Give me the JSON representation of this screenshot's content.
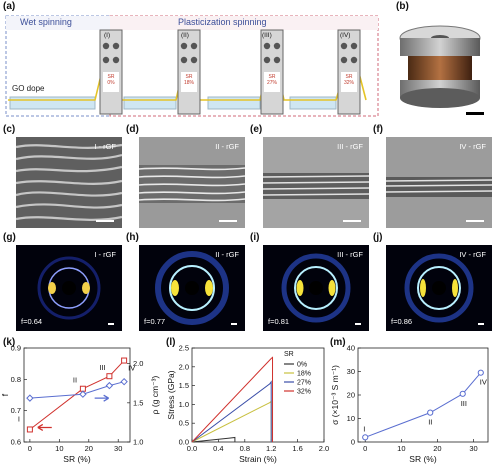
{
  "panel_labels": {
    "a": "(a)",
    "b": "(b)",
    "c": "(c)",
    "d": "(d)",
    "e": "(e)",
    "f": "(f)",
    "g": "(g)",
    "h": "(h)",
    "i": "(i)",
    "j": "(j)",
    "k": "(k)",
    "l": "(l)",
    "m": "(m)"
  },
  "schematic": {
    "wet_label": "Wet spinning",
    "plastic_label": "Plasticization spinning",
    "dope_label": "GO dope",
    "stations": [
      {
        "roman": "(I)",
        "sr": "SR\n0%"
      },
      {
        "roman": "(II)",
        "sr": "SR\n18%"
      },
      {
        "roman": "(III)",
        "sr": "SR\n27%"
      },
      {
        "roman": "(IV)",
        "sr": "SR\n32%"
      }
    ]
  },
  "sem": [
    {
      "tag": "I - rGF"
    },
    {
      "tag": "II - rGF"
    },
    {
      "tag": "III - rGF"
    },
    {
      "tag": "IV - rGF"
    }
  ],
  "saxs": [
    {
      "tag": "I - rGF",
      "f": "f=0.64"
    },
    {
      "tag": "II - rGF",
      "f": "f=0.77"
    },
    {
      "tag": "III - rGF",
      "f": "f=0.81"
    },
    {
      "tag": "IV - rGF",
      "f": "f=0.86"
    }
  ],
  "colors": {
    "red": "#d0312d",
    "blue": "#5a6ed0",
    "wet_box": "#7a8fc8",
    "plastic_box": "#d06a7a"
  },
  "chart_data": [
    {
      "type": "line",
      "xlabel": "SR (%)",
      "ylabel": "f",
      "y2label": "ρ (g cm⁻³)",
      "xlim": [
        -2,
        34
      ],
      "ylim": [
        0.6,
        0.9
      ],
      "y2lim": [
        1.0,
        2.2
      ],
      "xticks": [
        "0",
        "10",
        "20",
        "30"
      ],
      "yticks": [
        "0.6",
        "0.7",
        "0.8",
        "0.9"
      ],
      "y2ticks": [
        "1.0",
        "1.5",
        "2.0"
      ],
      "x": [
        0,
        18,
        27,
        32
      ],
      "series": [
        {
          "values": [
            0.64,
            0.77,
            0.81,
            0.86
          ],
          "axis": "left",
          "color": "#d0312d"
        },
        {
          "values": [
            1.56,
            1.61,
            1.72,
            1.77
          ],
          "axis": "right",
          "color": "#5a6ed0"
        }
      ],
      "point_labels": [
        "I",
        "II",
        "III",
        "IV"
      ]
    },
    {
      "type": "line",
      "xlabel": "Strain (%)",
      "ylabel": "Stress (GPa)",
      "xlim": [
        0,
        2.0
      ],
      "ylim": [
        0,
        2.5
      ],
      "xticks": [
        "0.0",
        "0.4",
        "0.8",
        "1.2",
        "1.6",
        "2.0"
      ],
      "yticks": [
        "0.0",
        "0.5",
        "1.0",
        "1.5",
        "2.0",
        "2.5"
      ],
      "legend_title": "SR",
      "series": [
        {
          "name": "0%",
          "color": "#333333",
          "x": [
            0,
            0.55,
            0.65,
            0.65
          ],
          "y": [
            0,
            0.1,
            0.12,
            0
          ]
        },
        {
          "name": "18%",
          "color": "#c8c040",
          "x": [
            0,
            1.18,
            1.2,
            1.2
          ],
          "y": [
            0,
            1.05,
            1.08,
            0
          ]
        },
        {
          "name": "27%",
          "color": "#3a4ea8",
          "x": [
            0,
            1.18,
            1.2,
            1.2
          ],
          "y": [
            0,
            1.55,
            1.6,
            0
          ]
        },
        {
          "name": "32%",
          "color": "#d0312d",
          "x": [
            0,
            1.2,
            1.22,
            1.22
          ],
          "y": [
            0,
            2.22,
            2.25,
            0
          ]
        }
      ]
    },
    {
      "type": "line",
      "xlabel": "SR (%)",
      "ylabel": "σ (×10⁻³ S m⁻¹)",
      "xlim": [
        -2,
        34
      ],
      "ylim": [
        0,
        40
      ],
      "xticks": [
        "0",
        "10",
        "20",
        "30"
      ],
      "yticks": [
        "0",
        "10",
        "20",
        "30",
        "40"
      ],
      "x": [
        0,
        18,
        27,
        32
      ],
      "series": [
        {
          "values": [
            2,
            12.5,
            20.5,
            29.5
          ],
          "color": "#5a6ed0"
        }
      ],
      "point_labels": [
        "I",
        "II",
        "III",
        "IV"
      ]
    }
  ]
}
